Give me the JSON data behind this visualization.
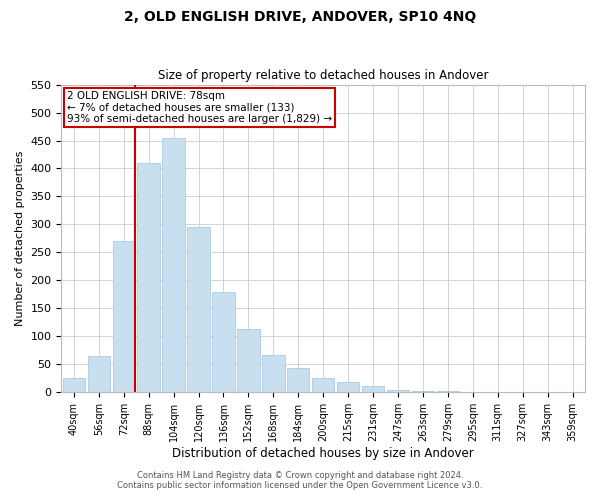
{
  "title": "2, OLD ENGLISH DRIVE, ANDOVER, SP10 4NQ",
  "subtitle": "Size of property relative to detached houses in Andover",
  "xlabel": "Distribution of detached houses by size in Andover",
  "ylabel": "Number of detached properties",
  "bar_color": "#c8dff0",
  "bar_edge_color": "#a0c4dc",
  "categories": [
    "40sqm",
    "56sqm",
    "72sqm",
    "88sqm",
    "104sqm",
    "120sqm",
    "136sqm",
    "152sqm",
    "168sqm",
    "184sqm",
    "200sqm",
    "215sqm",
    "231sqm",
    "247sqm",
    "263sqm",
    "279sqm",
    "295sqm",
    "311sqm",
    "327sqm",
    "343sqm",
    "359sqm"
  ],
  "values": [
    25,
    65,
    270,
    410,
    455,
    295,
    180,
    113,
    67,
    43,
    26,
    18,
    12,
    5,
    3,
    2,
    1,
    1,
    1,
    1,
    1
  ],
  "vline_color": "#cc0000",
  "ylim": [
    0,
    550
  ],
  "yticks": [
    0,
    50,
    100,
    150,
    200,
    250,
    300,
    350,
    400,
    450,
    500,
    550
  ],
  "annotation_text": "2 OLD ENGLISH DRIVE: 78sqm\n← 7% of detached houses are smaller (133)\n93% of semi-detached houses are larger (1,829) →",
  "annotation_box_color": "#ffffff",
  "annotation_box_edge": "#cc0000",
  "footer_line1": "Contains HM Land Registry data © Crown copyright and database right 2024.",
  "footer_line2": "Contains public sector information licensed under the Open Government Licence v3.0.",
  "background_color": "#ffffff",
  "grid_color": "#cccccc"
}
